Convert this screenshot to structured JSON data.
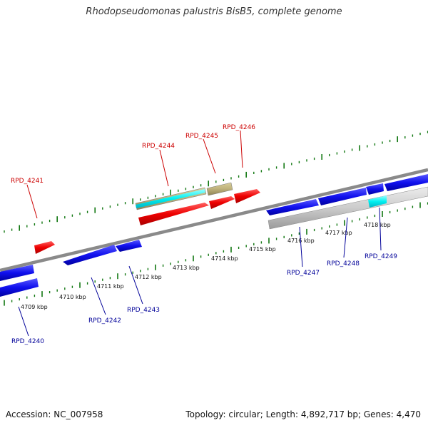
{
  "title": "Rhodopseudomonas palustris BisB5, complete genome",
  "accession": "Accession: NC_007958",
  "stats": "Topology: circular; Length: 4,892,717 bp; Genes: 4,470",
  "kbp_labels": [
    "4709 kbp",
    "4710 kbp",
    "4711 kbp",
    "4712 kbp",
    "4713 kbp",
    "4714 kbp",
    "4715 kbp",
    "4716 kbp",
    "4717 kbp",
    "4718 kbp"
  ],
  "genes": {
    "rpd_4240": "RPD_4240",
    "rpd_4241": "RPD_4241",
    "rpd_4242": "RPD_4242",
    "rpd_4243": "RPD_4243",
    "rpd_4244": "RPD_4244",
    "rpd_4245": "RPD_4245",
    "rpd_4246": "RPD_4246",
    "rpd_4247": "RPD_4247",
    "rpd_4248": "RPD_4248",
    "rpd_4249": "RPD_4249"
  },
  "colors": {
    "forward_label": "#cc0000",
    "reverse_label": "#000099",
    "forward_gene": "#ff0000",
    "reverse_gene": "#0000ee",
    "tick": "#117711",
    "backbone": "#888888"
  }
}
